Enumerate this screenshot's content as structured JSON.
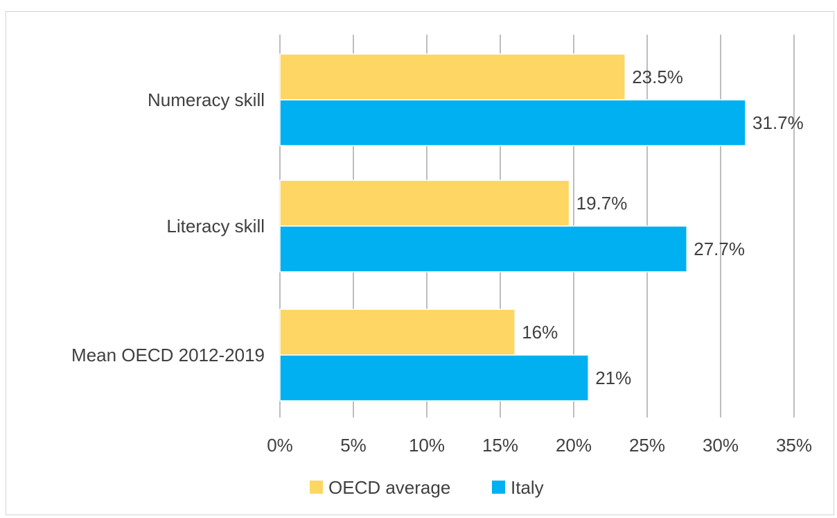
{
  "chart_data": {
    "type": "bar",
    "orientation": "horizontal",
    "categories": [
      "Numeracy skill",
      "Literacy skill",
      "Mean OECD 2012-2019"
    ],
    "series": [
      {
        "name": "OECD average",
        "color": "#FDD663",
        "values": [
          23.5,
          19.7,
          16
        ],
        "labels": [
          "23.5%",
          "19.7%",
          "16%"
        ]
      },
      {
        "name": "Italy",
        "color": "#00B0F0",
        "values": [
          31.7,
          27.7,
          21
        ],
        "labels": [
          "31.7%",
          "27.7%",
          "21%"
        ]
      }
    ],
    "xlim": [
      0,
      35
    ],
    "xticks": [
      0,
      5,
      10,
      15,
      20,
      25,
      30,
      35
    ],
    "xtick_labels": [
      "0%",
      "5%",
      "10%",
      "15%",
      "20%",
      "25%",
      "30%",
      "35%"
    ],
    "grid": "vertical",
    "legend": "bottom"
  }
}
